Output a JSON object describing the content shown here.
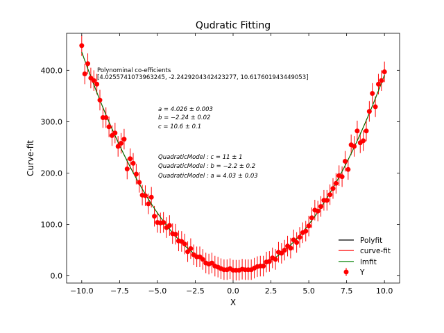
{
  "chart_data": {
    "type": "scatter",
    "title": "Qudratic Fitting",
    "xlabel": "X",
    "ylabel": "Curve-fit",
    "xlim": [
      -11,
      11
    ],
    "ylim": [
      -14,
      472
    ],
    "xticks": [
      -10,
      -7.5,
      -5,
      -2.5,
      0,
      2.5,
      5,
      7.5,
      10
    ],
    "xtick_labels": [
      "−10.0",
      "−7.5",
      "−5.0",
      "−2.5",
      "0.0",
      "2.5",
      "5.0",
      "7.5",
      "10.0"
    ],
    "yticks": [
      0,
      100,
      200,
      300,
      400
    ],
    "ytick_labels": [
      "0.0",
      "100.0",
      "200.0",
      "300.0",
      "400.0"
    ],
    "grid": false,
    "legend_position": "lower-right",
    "annotations": {
      "coef_title": "Polynominal co-efficients",
      "coef_values": "[4.0255741073963245, -2.2429204342423277, 10.617601943449053]",
      "param_a": "a = 4.026 ± 0.003",
      "param_b": "b = −2.24 ± 0.02",
      "param_c": "c = 10.6 ± 0.1",
      "model_c": "QuadraticModel : c = 11 ± 1",
      "model_b": "QuadraticModel : b = −2.2 ± 0.2",
      "model_a": "QuadraticModel : a = 4.03 ± 0.03"
    },
    "fit": {
      "a": 4.0255741073963245,
      "b": -2.2429204342423277,
      "c": 10.617601943449053
    },
    "series": [
      {
        "name": "Polyfit",
        "kind": "line",
        "color": "#000000"
      },
      {
        "name": "curve-fit",
        "kind": "line",
        "color": "#ff0000"
      },
      {
        "name": "lmfit",
        "kind": "line",
        "color": "#008000"
      },
      {
        "name": "Y",
        "kind": "scatter-errorbar",
        "color": "#ff0000",
        "x": [
          -10.0,
          -9.8,
          -9.6,
          -9.4,
          -9.2,
          -9.0,
          -8.8,
          -8.6,
          -8.4,
          -8.2,
          -8.0,
          -7.8,
          -7.6,
          -7.4,
          -7.2,
          -7.0,
          -6.8,
          -6.6,
          -6.4,
          -6.2,
          -6.0,
          -5.8,
          -5.6,
          -5.4,
          -5.2,
          -5.0,
          -4.8,
          -4.6,
          -4.4,
          -4.2,
          -4.0,
          -3.8,
          -3.6,
          -3.4,
          -3.2,
          -3.0,
          -2.8,
          -2.6,
          -2.4,
          -2.2,
          -2.0,
          -1.8,
          -1.6,
          -1.4,
          -1.2,
          -1.0,
          -0.8,
          -0.6,
          -0.4,
          -0.2,
          0.0,
          0.2,
          0.4,
          0.6,
          0.8,
          1.0,
          1.2,
          1.4,
          1.6,
          1.8,
          2.0,
          2.2,
          2.4,
          2.6,
          2.8,
          3.0,
          3.2,
          3.4,
          3.6,
          3.8,
          4.0,
          4.2,
          4.4,
          4.6,
          4.8,
          5.0,
          5.2,
          5.4,
          5.6,
          5.8,
          6.0,
          6.2,
          6.4,
          6.6,
          6.8,
          7.0,
          7.2,
          7.4,
          7.6,
          7.8,
          8.0,
          8.2,
          8.4,
          8.6,
          8.8,
          9.0,
          9.2,
          9.4,
          9.6,
          9.8,
          10.0
        ],
        "y": [
          448,
          393,
          413,
          385,
          380,
          373,
          342,
          308,
          308,
          290,
          273,
          278,
          252,
          258,
          266,
          208,
          228,
          219,
          198,
          182,
          157,
          156,
          140,
          153,
          116,
          104,
          103,
          104,
          94,
          98,
          82,
          81,
          68,
          67,
          62,
          47,
          53,
          41,
          37,
          37,
          32,
          25,
          23,
          25,
          19,
          17,
          14,
          12,
          12,
          14,
          11,
          11,
          11,
          13,
          12,
          12,
          12,
          15,
          18,
          19,
          19,
          27,
          28,
          35,
          32,
          46,
          44,
          50,
          58,
          54,
          70,
          65,
          75,
          84,
          87,
          97,
          113,
          128,
          126,
          135,
          147,
          147,
          158,
          170,
          180,
          195,
          193,
          223,
          207,
          255,
          252,
          282,
          259,
          263,
          282,
          320,
          355,
          329,
          373,
          380,
          397
        ],
        "yerr": 20
      }
    ]
  }
}
